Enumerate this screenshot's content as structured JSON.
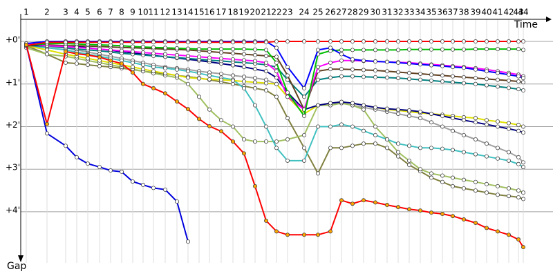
{
  "chart_data": {
    "type": "line",
    "x_label": "Time",
    "y_label": "Gap",
    "grid": true,
    "y_inverted": true,
    "xlim": [
      0,
      770
    ],
    "ylim": [
      -0.6,
      5.2
    ],
    "yticks": [
      {
        "value": 0,
        "label": "+0'"
      },
      {
        "value": 1,
        "label": "+1'"
      },
      {
        "value": 2,
        "label": "+2'"
      },
      {
        "value": 3,
        "label": "+3'"
      },
      {
        "value": 4,
        "label": "+4'"
      }
    ],
    "xticks": [
      {
        "value": 8,
        "label": "1"
      },
      {
        "value": 38,
        "label": "2"
      },
      {
        "value": 65,
        "label": "3"
      },
      {
        "value": 81,
        "label": "4"
      },
      {
        "value": 97,
        "label": "5"
      },
      {
        "value": 114,
        "label": "6"
      },
      {
        "value": 130,
        "label": "7"
      },
      {
        "value": 146,
        "label": "8"
      },
      {
        "value": 162,
        "label": "9"
      },
      {
        "value": 177,
        "label": "10"
      },
      {
        "value": 192,
        "label": "11"
      },
      {
        "value": 209,
        "label": "12"
      },
      {
        "value": 226,
        "label": "13"
      },
      {
        "value": 242,
        "label": "14"
      },
      {
        "value": 258,
        "label": "15"
      },
      {
        "value": 273,
        "label": "16"
      },
      {
        "value": 290,
        "label": "17"
      },
      {
        "value": 307,
        "label": "18"
      },
      {
        "value": 323,
        "label": "19"
      },
      {
        "value": 339,
        "label": "20"
      },
      {
        "value": 355,
        "label": "21"
      },
      {
        "value": 370,
        "label": "22"
      },
      {
        "value": 386,
        "label": "23"
      },
      {
        "value": 410,
        "label": "24"
      },
      {
        "value": 430,
        "label": "25"
      },
      {
        "value": 448,
        "label": "26"
      },
      {
        "value": 464,
        "label": "27"
      },
      {
        "value": 480,
        "label": "28"
      },
      {
        "value": 496,
        "label": "29"
      },
      {
        "value": 513,
        "label": "30"
      },
      {
        "value": 530,
        "label": "31"
      },
      {
        "value": 546,
        "label": "32"
      },
      {
        "value": 562,
        "label": "33"
      },
      {
        "value": 578,
        "label": "34"
      },
      {
        "value": 594,
        "label": "35"
      },
      {
        "value": 610,
        "label": "36"
      },
      {
        "value": 625,
        "label": "37"
      },
      {
        "value": 641,
        "label": "38"
      },
      {
        "value": 658,
        "label": "39"
      },
      {
        "value": 674,
        "label": "40"
      },
      {
        "value": 690,
        "label": "41"
      },
      {
        "value": 706,
        "label": "42"
      },
      {
        "value": 720,
        "label": "43"
      },
      {
        "value": 727,
        "label": "44"
      }
    ],
    "x": [
      8,
      38,
      65,
      81,
      97,
      114,
      130,
      146,
      162,
      177,
      192,
      209,
      226,
      242,
      258,
      273,
      290,
      307,
      323,
      339,
      355,
      370,
      386,
      410,
      430,
      448,
      464,
      480,
      496,
      513,
      530,
      546,
      562,
      578,
      594,
      610,
      625,
      641,
      658,
      674,
      690,
      706,
      720,
      727
    ],
    "series": [
      {
        "color": "#a0a0a0",
        "marker_color": "#ffffff",
        "values": [
          0.12,
          0.12,
          0.15,
          0.2,
          0.25,
          0.3,
          0.35,
          0.4,
          0.45,
          0.5,
          0.55,
          0.6,
          0.63,
          0.66,
          0.7,
          0.73,
          0.76,
          0.8,
          0.83,
          0.86,
          0.9,
          1.0,
          1.3,
          1.6,
          1.5,
          1.45,
          1.45,
          1.5,
          1.55,
          1.6,
          1.65,
          1.7,
          1.75,
          1.8,
          1.9,
          2.0,
          2.1,
          2.2,
          2.3,
          2.4,
          2.5,
          2.6,
          2.72,
          2.84
        ]
      },
      {
        "color": "#808040",
        "marker_color": "#ffffff",
        "values": [
          0.1,
          0.3,
          0.5,
          0.52,
          0.55,
          0.58,
          0.6,
          0.63,
          0.66,
          0.7,
          0.73,
          0.76,
          0.8,
          0.83,
          0.86,
          0.9,
          0.95,
          1.0,
          1.05,
          1.1,
          1.15,
          1.3,
          1.8,
          2.5,
          3.1,
          2.5,
          2.5,
          2.45,
          2.4,
          2.4,
          2.5,
          2.7,
          2.9,
          3.05,
          3.2,
          3.3,
          3.4,
          3.45,
          3.5,
          3.55,
          3.6,
          3.63,
          3.66,
          3.7
        ]
      },
      {
        "color": "#a0c060",
        "marker_color": "#ffffff",
        "values": [
          0.15,
          0.3,
          0.35,
          0.4,
          0.45,
          0.5,
          0.55,
          0.6,
          0.65,
          0.7,
          0.75,
          0.8,
          0.85,
          1.0,
          1.3,
          1.6,
          1.85,
          2.0,
          2.3,
          2.35,
          2.35,
          2.35,
          2.3,
          2.2,
          1.5,
          1.5,
          1.45,
          1.5,
          1.6,
          2.0,
          2.3,
          2.6,
          2.8,
          3.0,
          3.1,
          3.15,
          3.2,
          3.25,
          3.3,
          3.35,
          3.4,
          3.45,
          3.5,
          3.55
        ]
      },
      {
        "color": "#40c0c0",
        "marker_color": "#ffffff",
        "values": [
          0.1,
          0.15,
          0.2,
          0.25,
          0.3,
          0.35,
          0.4,
          0.45,
          0.5,
          0.55,
          0.6,
          0.63,
          0.66,
          0.7,
          0.75,
          0.8,
          0.85,
          0.9,
          1.1,
          1.5,
          2.0,
          2.5,
          2.8,
          2.8,
          2.0,
          2.0,
          1.95,
          2.0,
          2.1,
          2.2,
          2.3,
          2.4,
          2.45,
          2.5,
          2.5,
          2.52,
          2.55,
          2.6,
          2.65,
          2.7,
          2.75,
          2.8,
          2.88,
          2.95
        ]
      },
      {
        "color": "#e0e000",
        "marker_color": "#ffffff",
        "values": [
          0.1,
          0.2,
          0.3,
          0.35,
          0.4,
          0.45,
          0.5,
          0.55,
          0.6,
          0.65,
          0.7,
          0.75,
          0.8,
          0.85,
          0.87,
          0.89,
          0.9,
          0.92,
          0.94,
          0.96,
          0.98,
          1.0,
          1.3,
          1.7,
          1.5,
          1.45,
          1.42,
          1.45,
          1.5,
          1.55,
          1.6,
          1.62,
          1.65,
          1.68,
          1.7,
          1.72,
          1.75,
          1.78,
          1.8,
          1.85,
          1.88,
          1.92,
          1.96,
          2.0
        ]
      },
      {
        "color": "#000080",
        "marker_color": "#ffffff",
        "values": [
          0.1,
          0.1,
          0.1,
          0.12,
          0.15,
          0.18,
          0.21,
          0.24,
          0.27,
          0.3,
          0.33,
          0.36,
          0.39,
          0.42,
          0.45,
          0.48,
          0.52,
          0.56,
          0.6,
          0.65,
          0.7,
          0.85,
          1.2,
          1.6,
          1.5,
          1.45,
          1.42,
          1.45,
          1.5,
          1.55,
          1.58,
          1.6,
          1.62,
          1.65,
          1.7,
          1.75,
          1.8,
          1.85,
          1.9,
          1.95,
          2.0,
          2.05,
          2.1,
          2.14
        ]
      },
      {
        "color": "#008080",
        "marker_color": "#ffffff",
        "values": [
          0.05,
          0.1,
          0.15,
          0.18,
          0.2,
          0.22,
          0.25,
          0.28,
          0.3,
          0.32,
          0.34,
          0.36,
          0.38,
          0.4,
          0.42,
          0.44,
          0.46,
          0.48,
          0.5,
          0.52,
          0.55,
          0.6,
          0.9,
          1.3,
          0.9,
          0.85,
          0.82,
          0.82,
          0.83,
          0.84,
          0.85,
          0.86,
          0.88,
          0.9,
          0.92,
          0.94,
          0.96,
          0.98,
          1.0,
          1.03,
          1.06,
          1.09,
          1.12,
          1.15
        ]
      },
      {
        "color": "#604020",
        "marker_color": "#ffffff",
        "values": [
          0.05,
          0.08,
          0.1,
          0.1,
          0.11,
          0.12,
          0.13,
          0.14,
          0.15,
          0.16,
          0.17,
          0.18,
          0.19,
          0.2,
          0.22,
          0.24,
          0.26,
          0.28,
          0.3,
          0.32,
          0.34,
          0.36,
          0.8,
          1.6,
          0.7,
          0.65,
          0.65,
          0.66,
          0.67,
          0.68,
          0.7,
          0.72,
          0.74,
          0.76,
          0.78,
          0.8,
          0.82,
          0.84,
          0.86,
          0.88,
          0.9,
          0.92,
          0.94,
          0.96
        ]
      },
      {
        "color": "#ff00ff",
        "marker_color": "#ffffff",
        "values": [
          0.05,
          0.1,
          0.12,
          0.14,
          0.16,
          0.18,
          0.2,
          0.22,
          0.24,
          0.26,
          0.28,
          0.3,
          0.32,
          0.34,
          0.36,
          0.38,
          0.4,
          0.42,
          0.44,
          0.46,
          0.5,
          0.7,
          1.3,
          1.6,
          0.6,
          0.5,
          0.45,
          0.45,
          0.46,
          0.47,
          0.48,
          0.49,
          0.5,
          0.52,
          0.54,
          0.56,
          0.58,
          0.6,
          0.63,
          0.66,
          0.7,
          0.74,
          0.78,
          0.82
        ]
      },
      {
        "color": "#00c000",
        "marker_color": "#ffffff",
        "values": [
          0.1,
          0.05,
          0.05,
          0.06,
          0.07,
          0.08,
          0.09,
          0.1,
          0.12,
          0.13,
          0.14,
          0.15,
          0.16,
          0.17,
          0.18,
          0.18,
          0.18,
          0.18,
          0.18,
          0.19,
          0.2,
          0.5,
          1.2,
          1.75,
          0.3,
          0.22,
          0.2,
          0.2,
          0.2,
          0.2,
          0.2,
          0.2,
          0.19,
          0.19,
          0.19,
          0.19,
          0.19,
          0.19,
          0.18,
          0.18,
          0.18,
          0.18,
          0.18,
          0.2
        ]
      },
      {
        "color": "#0000ff",
        "marker_color": "#ffffff",
        "values": [
          0.05,
          0,
          0,
          0,
          0,
          0,
          0,
          0,
          0,
          0,
          0,
          0,
          0,
          0,
          0,
          0,
          0,
          0,
          0,
          0,
          0,
          0.15,
          0.6,
          1.1,
          0.2,
          0.15,
          0.3,
          0.42,
          0.45,
          0.47,
          0.48,
          0.5,
          0.52,
          0.54,
          0.56,
          0.58,
          0.6,
          0.62,
          0.66,
          0.7,
          0.74,
          0.78,
          0.82,
          0.86
        ]
      },
      {
        "color": "#ff0000",
        "marker_color": "#ffffff",
        "values": [
          0.1,
          0.02,
          0.02,
          0.02,
          0.02,
          0.02,
          0.02,
          0.02,
          0.02,
          0.02,
          0.02,
          0.02,
          0.02,
          0.02,
          0.02,
          0.02,
          0.02,
          0.02,
          0.02,
          0.02,
          0.02,
          0,
          0,
          0,
          0,
          0,
          0,
          0,
          0,
          0,
          0,
          0,
          0,
          0,
          0,
          0,
          0,
          0,
          0,
          0,
          0,
          0,
          0,
          0
        ]
      },
      {
        "color": "#0000dd",
        "marker_color": "#ffffff",
        "values": [
          0.08,
          2.16,
          2.45,
          2.72,
          2.87,
          2.95,
          3.03,
          3.06,
          3.29,
          3.37,
          3.44,
          3.48,
          3.76,
          4.7,
          null,
          null,
          null,
          null,
          null,
          null,
          null,
          null,
          null,
          null,
          null,
          null,
          null,
          null,
          null,
          null,
          null,
          null,
          null,
          null,
          null,
          null,
          null,
          null,
          null,
          null,
          null,
          null,
          null,
          null
        ]
      },
      {
        "color": "#ff0000",
        "marker_color": "#ffa500",
        "values": [
          0.08,
          1.94,
          0.24,
          0.29,
          0.32,
          0.37,
          0.45,
          0.52,
          0.73,
          1.0,
          1.1,
          1.22,
          1.41,
          1.59,
          1.82,
          1.99,
          2.11,
          2.35,
          2.63,
          3.4,
          4.21,
          4.46,
          4.54,
          4.54,
          4.54,
          4.46,
          3.73,
          3.81,
          3.73,
          3.78,
          3.84,
          3.89,
          3.94,
          3.97,
          4.02,
          4.05,
          4.1,
          4.18,
          4.26,
          4.38,
          4.46,
          4.54,
          4.65,
          4.83
        ]
      }
    ]
  }
}
